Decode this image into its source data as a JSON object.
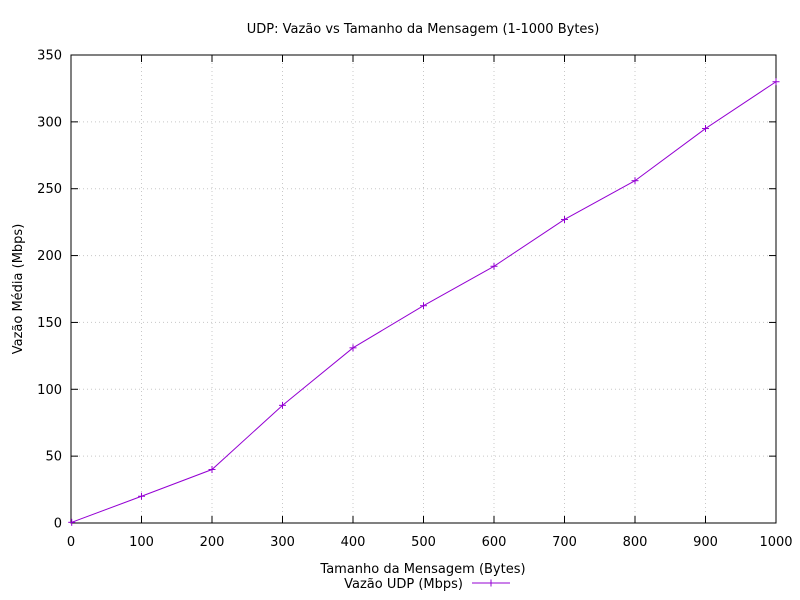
{
  "chart_data": {
    "type": "line",
    "title": "UDP: Vazão vs Tamanho da Mensagem (1-1000 Bytes)",
    "xlabel": "Tamanho da Mensagem (Bytes)",
    "ylabel": "Vazão Média (Mbps)",
    "xlim": [
      0,
      1000
    ],
    "ylim": [
      0,
      350
    ],
    "x_ticks": [
      0,
      100,
      200,
      300,
      400,
      500,
      600,
      700,
      800,
      900,
      1000
    ],
    "y_ticks": [
      0,
      50,
      100,
      150,
      200,
      250,
      300,
      350
    ],
    "grid": true,
    "legend_position": "bottom-center",
    "series": [
      {
        "name": "Vazão UDP (Mbps)",
        "color": "#9400d3",
        "marker": "plus",
        "x": [
          1,
          100,
          200,
          300,
          400,
          500,
          600,
          700,
          800,
          900,
          1000
        ],
        "y": [
          0.5,
          20,
          40,
          88,
          131,
          162.5,
          192,
          227,
          256,
          295,
          330
        ]
      }
    ]
  }
}
